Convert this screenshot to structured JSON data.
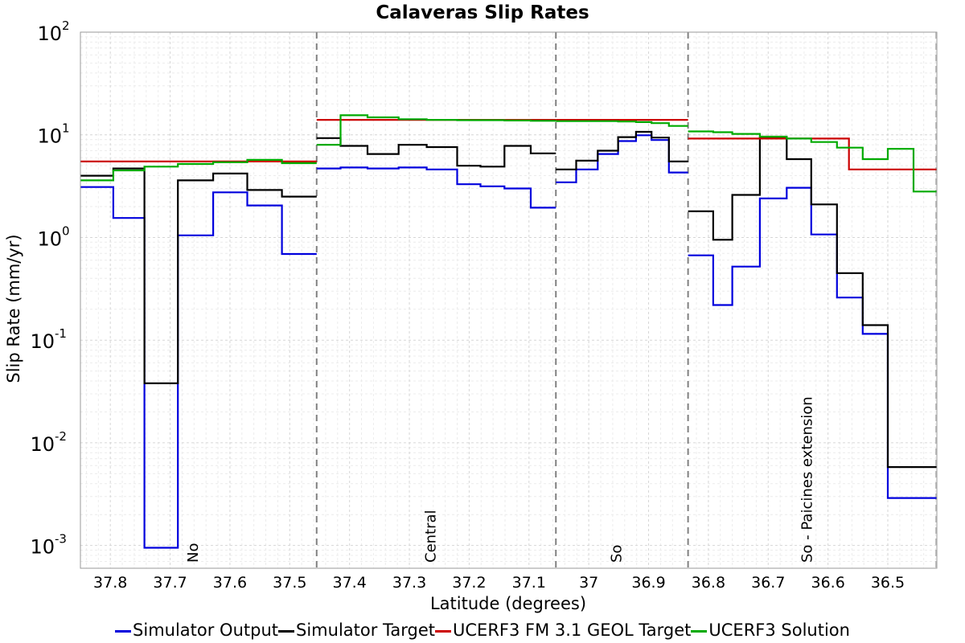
{
  "chart_data": {
    "type": "line",
    "title": "Calaveras Slip Rates",
    "xlabel": "Latitude (degrees)",
    "ylabel": "Slip Rate (mm/yr)",
    "x_reversed": true,
    "y_scale": "log",
    "xlim": [
      37.85,
      36.418
    ],
    "ylim": [
      0.0006,
      100
    ],
    "x_ticks": [
      "37.8",
      "37.7",
      "37.6",
      "37.5",
      "37.4",
      "37.3",
      "37.2",
      "37.1",
      "37",
      "36.9",
      "36.8",
      "36.7",
      "36.6",
      "36.5"
    ],
    "y_tick_labels": [
      {
        "base": "10",
        "exp": "2"
      },
      {
        "base": "10",
        "exp": "1"
      },
      {
        "base": "10",
        "exp": "0"
      },
      {
        "base": "10",
        "exp": "-1"
      },
      {
        "base": "10",
        "exp": "-2"
      },
      {
        "base": "10",
        "exp": "-3"
      }
    ],
    "grid": true,
    "legend_position": "bottom",
    "sections": [
      {
        "label": "No",
        "start": 37.85,
        "end": 37.455
      },
      {
        "label": "Central",
        "start": 37.455,
        "end": 37.055
      },
      {
        "label": "So",
        "start": 37.055,
        "end": 36.834
      },
      {
        "label": "So - Paicines extension",
        "start": 36.834,
        "end": 36.418
      }
    ],
    "series": [
      {
        "name": "Simulator Output",
        "color": "#0000dd",
        "segments": [
          {
            "edges": [
              37.85,
              37.795,
              37.743,
              37.687,
              37.628,
              37.571,
              37.513,
              37.455
            ],
            "values": [
              3.1,
              1.55,
              0.00095,
              1.05,
              2.75,
              2.05,
              0.69
            ]
          },
          {
            "edges": [
              37.455,
              37.415,
              37.37,
              37.318,
              37.271,
              37.22,
              37.181,
              37.141,
              37.097,
              37.055
            ],
            "values": [
              4.7,
              4.8,
              4.7,
              4.8,
              4.6,
              3.3,
              3.15,
              3.0,
              1.95
            ]
          },
          {
            "edges": [
              37.055,
              37.021,
              36.985,
              36.951,
              36.921,
              36.895,
              36.866,
              36.834
            ],
            "values": [
              3.45,
              4.6,
              6.5,
              8.7,
              9.9,
              8.9,
              4.3
            ]
          },
          {
            "edges": [
              36.834,
              36.792,
              36.76,
              36.714,
              36.669,
              36.628,
              36.585,
              36.542,
              36.5,
              36.457,
              36.418
            ],
            "values": [
              0.67,
              0.22,
              0.52,
              2.4,
              3.05,
              1.07,
              0.26,
              0.115,
              0.0029,
              0.0029
            ]
          }
        ]
      },
      {
        "name": "Simulator Target",
        "color": "#000000",
        "segments": [
          {
            "edges": [
              37.85,
              37.795,
              37.743,
              37.687,
              37.628,
              37.571,
              37.513,
              37.455
            ],
            "values": [
              4.0,
              4.7,
              0.038,
              3.6,
              4.2,
              2.9,
              2.5
            ]
          },
          {
            "edges": [
              37.455,
              37.415,
              37.37,
              37.318,
              37.271,
              37.22,
              37.181,
              37.141,
              37.097,
              37.055
            ],
            "values": [
              9.3,
              7.8,
              6.5,
              8.0,
              7.6,
              5.0,
              4.9,
              7.8,
              6.6
            ]
          },
          {
            "edges": [
              37.055,
              37.021,
              36.985,
              36.951,
              36.921,
              36.895,
              36.866,
              36.834
            ],
            "values": [
              4.6,
              5.6,
              7.0,
              9.5,
              10.7,
              9.4,
              5.5
            ]
          },
          {
            "edges": [
              36.834,
              36.792,
              36.76,
              36.714,
              36.669,
              36.628,
              36.585,
              36.542,
              36.5,
              36.457,
              36.418
            ],
            "values": [
              1.8,
              0.95,
              2.6,
              9.5,
              5.8,
              2.1,
              0.45,
              0.14,
              0.0058,
              0.0058
            ]
          }
        ]
      },
      {
        "name": "UCERF3 FM 3.1 GEOL Target",
        "color": "#cc0000",
        "segments": [
          {
            "edges": [
              37.85,
              37.455
            ],
            "values": [
              5.5
            ]
          },
          {
            "edges": [
              37.455,
              37.055
            ],
            "values": [
              14
            ]
          },
          {
            "edges": [
              37.055,
              36.834
            ],
            "values": [
              14
            ]
          },
          {
            "edges": [
              36.834,
              36.565,
              36.418
            ],
            "values": [
              9.2,
              4.6
            ]
          }
        ]
      },
      {
        "name": "UCERF3 Solution",
        "color": "#00aa00",
        "segments": [
          {
            "edges": [
              37.85,
              37.795,
              37.743,
              37.687,
              37.628,
              37.571,
              37.513,
              37.455
            ],
            "values": [
              3.6,
              4.5,
              4.9,
              5.2,
              5.4,
              5.7,
              5.3
            ]
          },
          {
            "edges": [
              37.455,
              37.415,
              37.37,
              37.318,
              37.271,
              37.22,
              37.181,
              37.141,
              37.097,
              37.055
            ],
            "values": [
              8.0,
              15.5,
              14.8,
              14.2,
              14.0,
              13.9,
              13.9,
              13.8,
              13.7
            ]
          },
          {
            "edges": [
              37.055,
              37.021,
              36.985,
              36.951,
              36.921,
              36.895,
              36.866,
              36.834
            ],
            "values": [
              13.6,
              13.6,
              13.6,
              13.5,
              13.3,
              13.0,
              12.2
            ]
          },
          {
            "edges": [
              36.834,
              36.792,
              36.76,
              36.714,
              36.669,
              36.628,
              36.585,
              36.542,
              36.5,
              36.457,
              36.418
            ],
            "values": [
              10.8,
              10.6,
              10.2,
              9.6,
              9.2,
              8.5,
              7.5,
              5.8,
              7.3,
              2.8
            ]
          }
        ]
      }
    ]
  }
}
